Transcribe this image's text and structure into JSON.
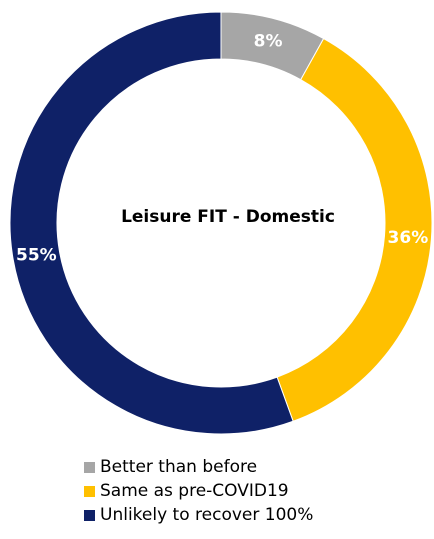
{
  "chart_data": {
    "type": "pie",
    "title": "Leisure FIT - Domestic",
    "donut": true,
    "categories": [
      "Better than before",
      "Same as pre-COVID19",
      "Unlikely to recover 100%"
    ],
    "values": [
      8,
      36,
      55
    ],
    "labels": [
      "8%",
      "36%",
      "55%"
    ],
    "colors": [
      "#A6A6A6",
      "#FFC000",
      "#0F2167"
    ],
    "legend_position": "bottom",
    "start_angle": "top (12 o'clock), clockwise"
  }
}
